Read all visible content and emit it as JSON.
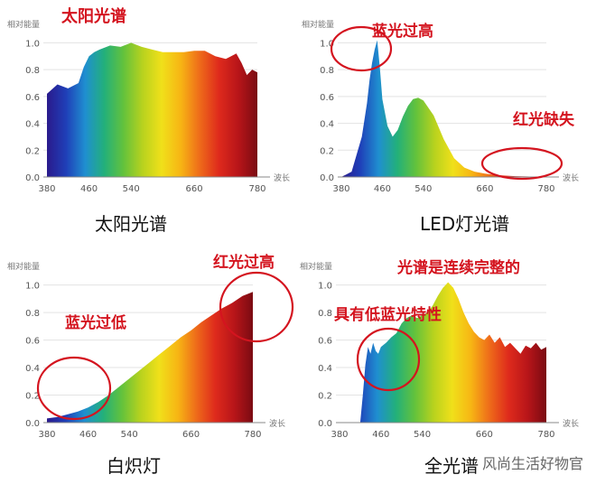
{
  "spectrum_colors": [
    "#2a1a8c",
    "#1f3fb8",
    "#1f8fd0",
    "#23b07a",
    "#63c23c",
    "#b8d21e",
    "#f0e01a",
    "#f7b514",
    "#ee6a1a",
    "#de2a1c",
    "#b81519",
    "#7a0b12"
  ],
  "annotation_color": "#d4141f",
  "watermark": "风尚生活好物官",
  "chart_data": [
    {
      "type": "area",
      "title": "太阳光谱",
      "caption": "太阳光谱",
      "ylabel": "相对能量",
      "xlabel": "波长",
      "x": [
        380,
        400,
        420,
        440,
        450,
        460,
        470,
        480,
        500,
        520,
        540,
        560,
        580,
        600,
        620,
        640,
        660,
        680,
        700,
        720,
        740,
        750,
        760,
        770,
        780
      ],
      "y": [
        0.62,
        0.69,
        0.66,
        0.7,
        0.82,
        0.9,
        0.93,
        0.95,
        0.98,
        0.97,
        1.0,
        0.97,
        0.95,
        0.93,
        0.93,
        0.93,
        0.94,
        0.94,
        0.9,
        0.88,
        0.92,
        0.85,
        0.76,
        0.8,
        0.78
      ],
      "xticks": [
        380,
        460,
        540,
        660,
        780
      ],
      "yticks": [
        "0.0",
        "0.2",
        "0.4",
        "0.6",
        "0.8",
        "1.0"
      ],
      "ylim": [
        0,
        1.05
      ],
      "annotations": []
    },
    {
      "type": "area",
      "title": "LED灯光谱",
      "caption": "LED灯光谱",
      "ylabel": "相对能量",
      "xlabel": "波长",
      "x": [
        380,
        400,
        420,
        430,
        435,
        440,
        445,
        450,
        455,
        460,
        470,
        480,
        490,
        500,
        510,
        520,
        530,
        540,
        560,
        580,
        600,
        620,
        640,
        660,
        680,
        700,
        720,
        740,
        760,
        780
      ],
      "y": [
        0.0,
        0.04,
        0.3,
        0.55,
        0.72,
        0.85,
        0.95,
        1.02,
        0.82,
        0.58,
        0.38,
        0.3,
        0.35,
        0.45,
        0.53,
        0.58,
        0.59,
        0.57,
        0.46,
        0.28,
        0.14,
        0.07,
        0.04,
        0.025,
        0.015,
        0.01,
        0.006,
        0.004,
        0.002,
        0.0
      ],
      "xticks": [
        380,
        460,
        540,
        660,
        780
      ],
      "yticks": [
        "0.0",
        "0.2",
        "0.4",
        "0.6",
        "0.8",
        "1.0"
      ],
      "ylim": [
        0,
        1.05
      ],
      "annotations": [
        "蓝光过高",
        "红光缺失"
      ]
    },
    {
      "type": "area",
      "title": "白炽灯",
      "caption": "白炽灯",
      "ylabel": "相对能量",
      "xlabel": "波长",
      "x": [
        380,
        400,
        420,
        440,
        460,
        480,
        500,
        520,
        540,
        560,
        580,
        600,
        620,
        640,
        660,
        680,
        700,
        720,
        740,
        760,
        780
      ],
      "y": [
        0.03,
        0.04,
        0.06,
        0.08,
        0.11,
        0.15,
        0.2,
        0.26,
        0.32,
        0.38,
        0.44,
        0.5,
        0.56,
        0.62,
        0.67,
        0.73,
        0.78,
        0.83,
        0.87,
        0.92,
        0.95
      ],
      "xticks": [
        380,
        460,
        540,
        660,
        780
      ],
      "yticks": [
        "0.0",
        "0.2",
        "0.4",
        "0.6",
        "0.8",
        "1.0"
      ],
      "ylim": [
        0,
        1.05
      ],
      "annotations": [
        "红光过高",
        "蓝光过低"
      ]
    },
    {
      "type": "area",
      "title": "全光谱",
      "caption": "全光谱",
      "ylabel": "相对能量",
      "xlabel": "波长",
      "x": [
        380,
        400,
        420,
        425,
        430,
        435,
        440,
        445,
        450,
        455,
        460,
        470,
        480,
        490,
        500,
        510,
        520,
        530,
        540,
        550,
        560,
        570,
        580,
        590,
        600,
        610,
        620,
        630,
        640,
        650,
        660,
        670,
        680,
        690,
        700,
        710,
        720,
        730,
        740,
        750,
        760,
        770,
        780
      ],
      "y": [
        0.0,
        0.0,
        0.0,
        0.2,
        0.42,
        0.55,
        0.5,
        0.58,
        0.52,
        0.5,
        0.55,
        0.58,
        0.62,
        0.65,
        0.72,
        0.76,
        0.78,
        0.76,
        0.78,
        0.8,
        0.85,
        0.92,
        0.98,
        1.02,
        0.98,
        0.9,
        0.8,
        0.72,
        0.66,
        0.62,
        0.6,
        0.64,
        0.58,
        0.62,
        0.55,
        0.58,
        0.54,
        0.5,
        0.56,
        0.54,
        0.58,
        0.53,
        0.55
      ],
      "xticks": [
        380,
        460,
        540,
        660,
        780
      ],
      "yticks": [
        "0.0",
        "0.2",
        "0.4",
        "0.6",
        "0.8",
        "1.0"
      ],
      "ylim": [
        0,
        1.05
      ],
      "annotations": [
        "光谱是连续完整的",
        "具有低蓝光特性"
      ]
    }
  ]
}
